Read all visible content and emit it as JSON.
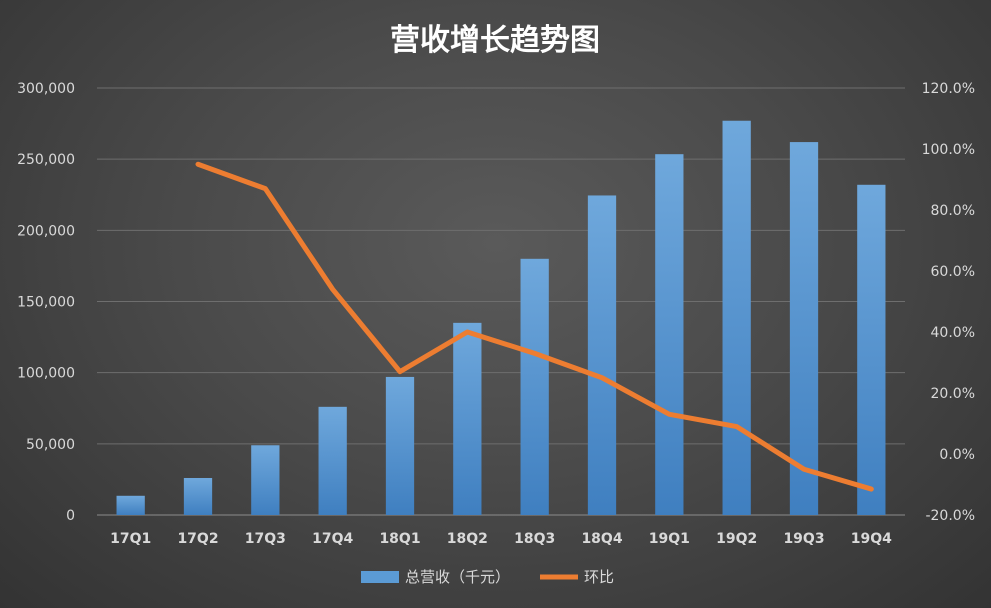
{
  "chart_data": {
    "type": "bar",
    "title": "营收增长趋势图",
    "categories": [
      "17Q1",
      "17Q2",
      "17Q3",
      "17Q4",
      "18Q1",
      "18Q2",
      "18Q3",
      "18Q4",
      "19Q1",
      "19Q2",
      "19Q3",
      "19Q4"
    ],
    "series": [
      {
        "name": "总营收（千元）",
        "type": "bar",
        "axis": "left",
        "color": "#5b9bd5",
        "values": [
          13500,
          26000,
          49000,
          76000,
          97000,
          135000,
          180000,
          224500,
          253500,
          277000,
          262000,
          232000
        ]
      },
      {
        "name": "环比",
        "type": "line",
        "axis": "right",
        "color": "#ed7d31",
        "values": [
          null,
          95.0,
          87.0,
          54.0,
          27.0,
          40.0,
          33.0,
          25.0,
          13.0,
          9.0,
          -5.0,
          -11.5
        ]
      }
    ],
    "y_left": {
      "ylim": [
        0,
        300000
      ],
      "ticks": [
        0,
        50000,
        100000,
        150000,
        200000,
        250000,
        300000
      ],
      "tick_labels": [
        "0",
        "50,000",
        "100,000",
        "150,000",
        "200,000",
        "250,000",
        "300,000"
      ]
    },
    "y_right": {
      "ylim": [
        -20,
        120
      ],
      "ticks": [
        -20,
        0,
        20,
        40,
        60,
        80,
        100,
        120
      ],
      "tick_labels": [
        "-20.0%",
        "0.0%",
        "20.0%",
        "40.0%",
        "60.0%",
        "80.0%",
        "100.0%",
        "120.0%"
      ]
    },
    "grid": true,
    "legend_position": "bottom"
  }
}
